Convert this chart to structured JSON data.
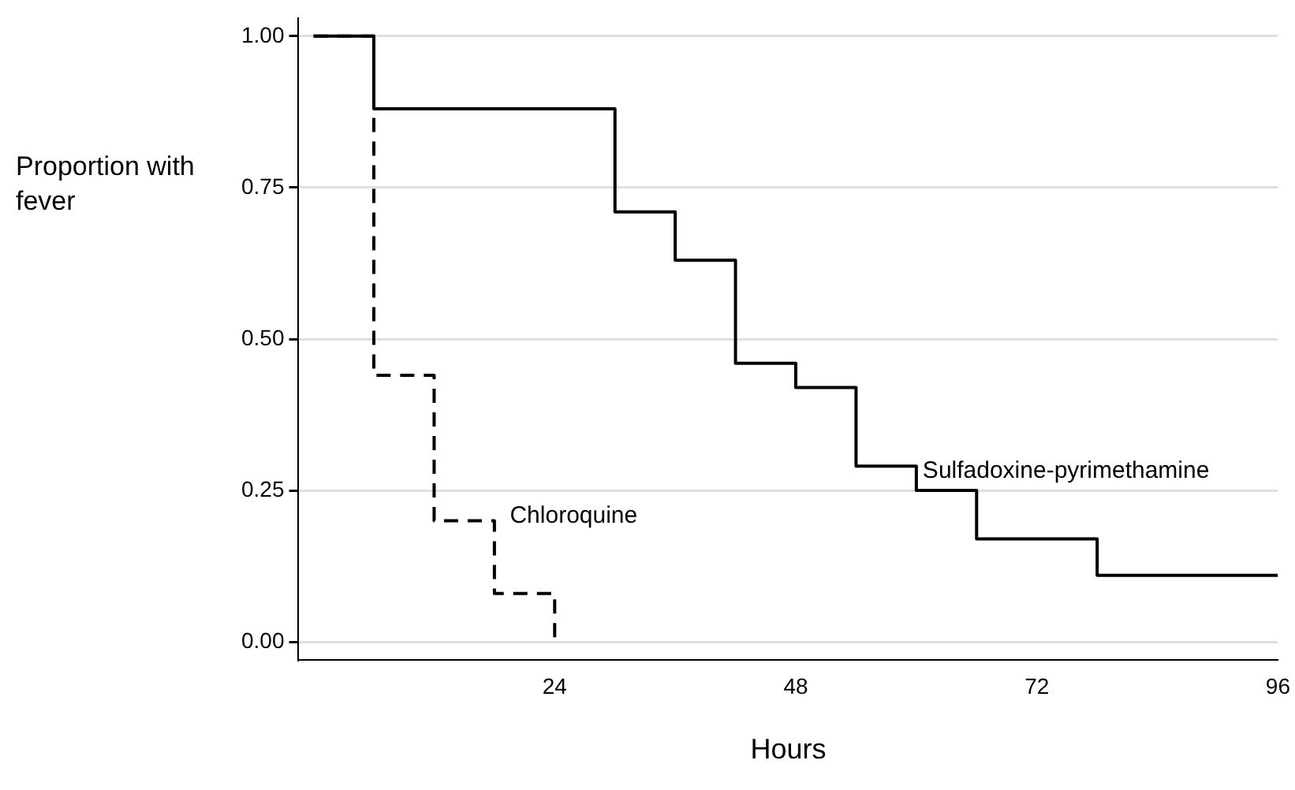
{
  "chart_data": {
    "type": "step",
    "xlabel": "Hours",
    "ylabel": "Proportion with fever",
    "xlim": [
      -1.5,
      96
    ],
    "xticks": [
      24,
      48,
      72,
      96
    ],
    "ylim": [
      -0.03,
      1.03
    ],
    "yticks": [
      {
        "value": 0,
        "label": "0.00"
      },
      {
        "value": 0.25,
        "label": "0.25"
      },
      {
        "value": 0.5,
        "label": "0.50"
      },
      {
        "value": 0.75,
        "label": "0.75"
      },
      {
        "value": 1,
        "label": "1.00"
      }
    ],
    "grid": "y",
    "legend": false,
    "marker": "none",
    "series": [
      {
        "name": "Sulfadoxine-pyrimethamine",
        "color": "#000000",
        "line_style": "solid",
        "x": [
          0,
          6,
          30,
          36,
          42,
          48,
          54,
          60,
          66,
          78,
          96
        ],
        "values": [
          1,
          0.88,
          0.71,
          0.63,
          0.46,
          0.42,
          0.29,
          0.25,
          0.17,
          0.11,
          0.11
        ]
      },
      {
        "name": "Chloroquine",
        "color": "#000000",
        "line_style": "dashed",
        "x": [
          0,
          6,
          12,
          18,
          24
        ],
        "values": [
          1,
          0.44,
          0.2,
          0.08,
          0
        ]
      }
    ]
  }
}
